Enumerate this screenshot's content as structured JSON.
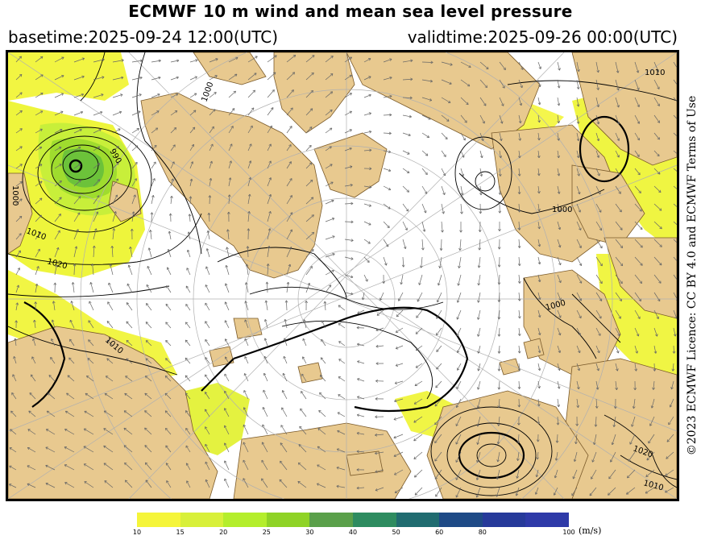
{
  "header": {
    "title": "ECMWF 10 m wind and mean sea level pressure",
    "basetime": "basetime:2025-09-24 12:00(UTC)",
    "validtime": "validtime:2025-09-26 00:00(UTC)"
  },
  "licence": "©2023 ECMWF Licence: CC BY 4.0 and ECMWF Terms of Use",
  "map": {
    "isobar_labels": [
      "1010",
      "1000",
      "990",
      "1000",
      "1010",
      "1020",
      "1000",
      "1000",
      "1020",
      "1010",
      "1010"
    ],
    "colors": {
      "land": "#e8c98f",
      "sea": "#ffffff",
      "isobar": "#000000",
      "wind_arrow": "#666666",
      "graticule": "#b0b0b0"
    }
  },
  "legend": {
    "ticks": [
      "10",
      "15",
      "20",
      "25",
      "30",
      "40",
      "50",
      "60",
      "80",
      "100"
    ],
    "unit": "(m/s)",
    "colors": [
      "#f5f53a",
      "#d8f03a",
      "#b4ee2c",
      "#8fd326",
      "#5aa04a",
      "#2e8c60",
      "#206c70",
      "#1e4a86",
      "#263a9a",
      "#2e3aa8"
    ]
  }
}
